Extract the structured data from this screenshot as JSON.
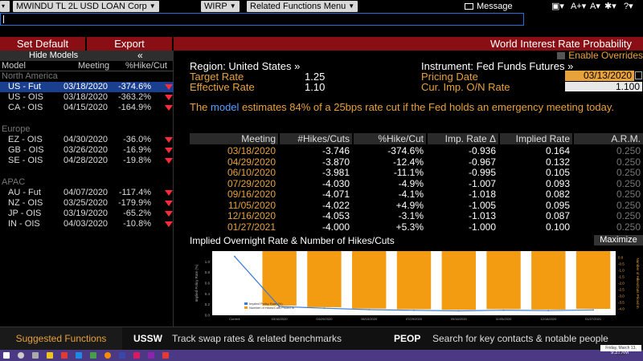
{
  "topbar": {
    "security": "MWINDU TL 2L USD LOAN Corp",
    "function": "WIRP",
    "related": "Related Functions Menu",
    "message": "Message"
  },
  "redbar": {
    "set_default": "Set Default",
    "export": "Export",
    "title": "World Interest Rate Probability"
  },
  "left": {
    "hide_models": "Hide Models",
    "col_model": "Model",
    "col_meeting": "Meeting",
    "col_hike": "%Hike/Cut",
    "regions": [
      {
        "name": "North America",
        "rows": [
          {
            "model": "US - Fut",
            "meeting": "03/18/2020",
            "pct": "-374.6%",
            "selected": true
          },
          {
            "model": "US - OIS",
            "meeting": "03/18/2020",
            "pct": "-363.2%",
            "selected": false
          },
          {
            "model": "CA - OIS",
            "meeting": "04/15/2020",
            "pct": "-164.9%",
            "selected": false
          }
        ]
      },
      {
        "name": "Europe",
        "rows": [
          {
            "model": "EZ - OIS",
            "meeting": "04/30/2020",
            "pct": "-36.0%",
            "selected": false
          },
          {
            "model": "GB - OIS",
            "meeting": "03/26/2020",
            "pct": "-16.9%",
            "selected": false
          },
          {
            "model": "SE - OIS",
            "meeting": "04/28/2020",
            "pct": "-19.8%",
            "selected": false
          }
        ]
      },
      {
        "name": "APAC",
        "rows": [
          {
            "model": "AU - Fut",
            "meeting": "04/07/2020",
            "pct": "-117.4%",
            "selected": false
          },
          {
            "model": "NZ - OIS",
            "meeting": "03/25/2020",
            "pct": "-179.9%",
            "selected": false
          },
          {
            "model": "JP - OIS",
            "meeting": "03/19/2020",
            "pct": "-65.2%",
            "selected": false
          },
          {
            "model": "IN - OIS",
            "meeting": "04/03/2020",
            "pct": "-10.8%",
            "selected": false
          }
        ]
      }
    ]
  },
  "main": {
    "enable_overrides": "Enable Overrides",
    "region": "Region: United States »",
    "instrument": "Instrument: Fed Funds Futures »",
    "target_rate_label": "Target Rate",
    "target_rate": "1.25",
    "effective_rate_label": "Effective Rate",
    "effective_rate": "1.10",
    "pricing_date_label": "Pricing Date",
    "pricing_date": "03/13/2020",
    "cur_imp_label": "Cur. Imp. O/N Rate",
    "cur_imp": "1.100",
    "narrative_pre": "The ",
    "narrative_link": "model",
    "narrative_post": " estimates 84% of a 25bps rate cut if the Fed holds an emergency meeting today."
  },
  "table": {
    "headers": [
      "Meeting",
      "#Hikes/Cuts",
      "%Hike/Cut",
      "Imp. Rate Δ",
      "Implied Rate",
      "A.R.M."
    ],
    "rows": [
      [
        "03/18/2020",
        "-3.746",
        "-374.6%",
        "-0.936",
        "0.164",
        "0.250"
      ],
      [
        "04/29/2020",
        "-3.870",
        "-12.4%",
        "-0.967",
        "0.132",
        "0.250"
      ],
      [
        "06/10/2020",
        "-3.981",
        "-11.1%",
        "-0.995",
        "0.105",
        "0.250"
      ],
      [
        "07/29/2020",
        "-4.030",
        "-4.9%",
        "-1.007",
        "0.093",
        "0.250"
      ],
      [
        "09/16/2020",
        "-4.071",
        "-4.1%",
        "-1.018",
        "0.082",
        "0.250"
      ],
      [
        "11/05/2020",
        "-4.022",
        "+4.9%",
        "-1.005",
        "0.095",
        "0.250"
      ],
      [
        "12/16/2020",
        "-4.053",
        "-3.1%",
        "-1.013",
        "0.087",
        "0.250"
      ],
      [
        "01/27/2021",
        "-4.000",
        "+5.3%",
        "-1.000",
        "0.100",
        "0.250"
      ]
    ]
  },
  "chart": {
    "title": "Implied Overnight Rate & Number of Hikes/Cuts",
    "maximize": "Maximize"
  },
  "chart_data": {
    "type": "bar",
    "title": "Implied Overnight Rate & Number of Hikes/Cuts",
    "categories": [
      "Current",
      "03/18/2020",
      "04/29/2020",
      "06/10/2020",
      "07/29/2020",
      "09/16/2020",
      "11/05/2020",
      "12/16/2020",
      "01/27/2021"
    ],
    "series": [
      {
        "name": "Implied Policy Rate (%)",
        "kind": "line",
        "values": [
          1.1,
          0.164,
          0.132,
          0.105,
          0.093,
          0.082,
          0.095,
          0.087,
          0.1
        ]
      },
      {
        "name": "Number of Hikes/Cuts Priced In",
        "kind": "bar",
        "values": [
          null,
          -3.746,
          -3.87,
          -3.981,
          -4.03,
          -4.071,
          -4.022,
          -4.053,
          -4.0
        ]
      }
    ],
    "ylabel": "Implied Policy Rate (%)",
    "y2label": "Number of Hikes/Cuts Priced In",
    "ylim": [
      0,
      1.2
    ],
    "y2lim": [
      -4.5,
      0.5
    ],
    "yticks": [
      "1.0",
      "0.8",
      "0.6",
      "0.4",
      "0.2",
      "0.0"
    ],
    "y2ticks": [
      "0.0",
      "-0.5",
      "-1.0",
      "-1.5",
      "-2.0",
      "-2.5",
      "-3.0",
      "-3.5",
      "-4.0"
    ],
    "colors": {
      "bar": "#f39c12",
      "line": "#3a7bd5"
    }
  },
  "bottombar": {
    "suggested": "Suggested Functions",
    "f1_code": "USSW",
    "f1_desc": "Track swap rates & related benchmarks",
    "f2_code": "PEOP",
    "f2_desc": "Search for key contacts & notable people"
  },
  "taskbar": {
    "time": "9:31 AM",
    "date_tooltip": "Friday, March 13, 2020"
  }
}
